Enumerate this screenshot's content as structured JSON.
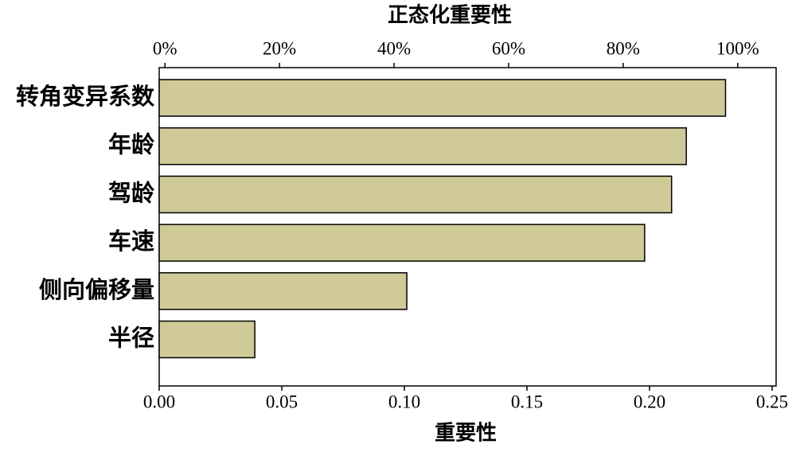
{
  "chart_data": {
    "type": "barh",
    "xlabel": "重要性",
    "x2label": "正态化重要性",
    "categories": [
      "转角变异系数",
      "年龄",
      "驾龄",
      "车速",
      "侧向偏移量",
      "半径"
    ],
    "values": [
      0.231,
      0.215,
      0.209,
      0.198,
      0.101,
      0.039
    ],
    "color": "#d0ca98",
    "xlim": [
      0,
      0.25
    ],
    "xticks": [
      {
        "value": 0,
        "label": "0.00"
      },
      {
        "value": 0.05,
        "label": "0.05"
      },
      {
        "value": 0.1,
        "label": "0.10"
      },
      {
        "value": 0.15,
        "label": "0.15"
      },
      {
        "value": 0.2,
        "label": "0.20"
      },
      {
        "value": 0.25,
        "label": "0.25"
      }
    ],
    "x2lim": [
      -1,
      106.7
    ],
    "x2ticks": [
      {
        "value": 0,
        "label": "0%"
      },
      {
        "value": 20,
        "label": "20%"
      },
      {
        "value": 40,
        "label": "40%"
      },
      {
        "value": 60,
        "label": "60%"
      },
      {
        "value": 80,
        "label": "80%"
      },
      {
        "value": 100,
        "label": "100%"
      }
    ],
    "grid": false
  }
}
